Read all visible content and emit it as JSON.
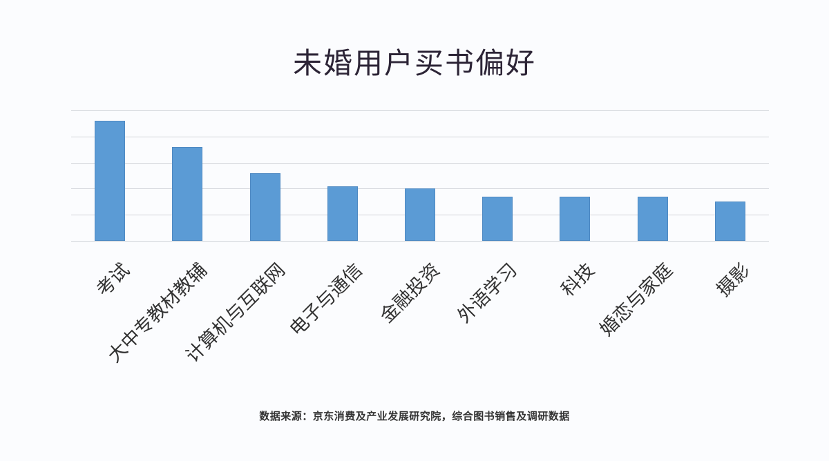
{
  "title": "未婚用户买书偏好",
  "source_note": "数据来源：京东消费及产业发展研究院，综合图书销售及调研数据",
  "colors": {
    "bar": "#5b9bd5",
    "grid": "#d0d3d8",
    "background": "#fbfcfe",
    "text": "#2c2436"
  },
  "chart_data": {
    "type": "bar",
    "title": "未婚用户买书偏好",
    "xlabel": "",
    "ylabel": "",
    "categories": [
      "考试",
      "大中专教材教辅",
      "计算机与互联网",
      "电子与通信",
      "金融投资",
      "外语学习",
      "科技",
      "婚恋与家庭",
      "摄影"
    ],
    "values": [
      4.6,
      3.6,
      2.6,
      2.1,
      2.0,
      1.7,
      1.7,
      1.7,
      1.5
    ],
    "ylim": [
      0,
      5
    ],
    "y_ticks_shown": false,
    "grid": true,
    "gridlines": 5,
    "legend": "none",
    "x_label_rotation": -45,
    "note": "Values in relative gridline units (no axis numbers shown)",
    "source": "数据来源：京东消费及产业发展研究院，综合图书销售及调研数据"
  }
}
